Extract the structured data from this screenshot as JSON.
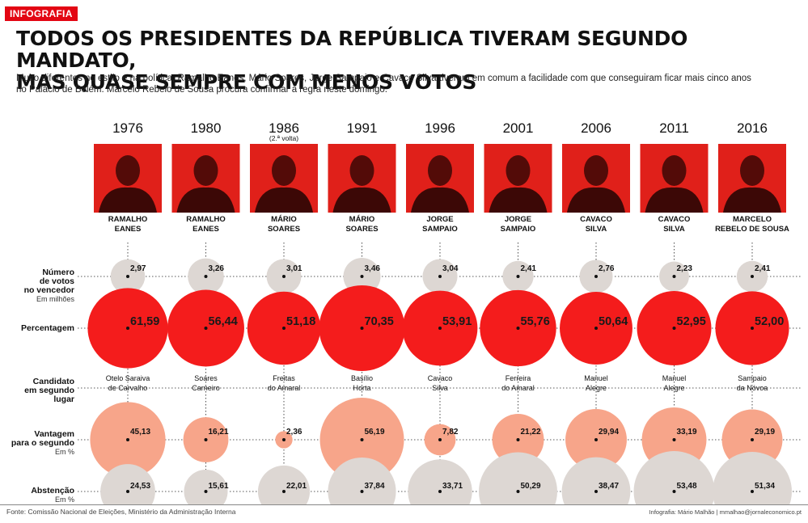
{
  "tag": "INFOGRAFIA",
  "title_line1": "TODOS OS PRESIDENTES DA REPÚBLICA TIVERAM SEGUNDO MANDATO,",
  "title_line2": "MAS QUASE SEMPRE COM MENOS VOTOS",
  "subtitle_line1": "Muito diferentes no estilo e na política, Ramalho Eanes, Mário Soares, Jorge Sampaio e Cavaco Silva tiveram em comum a facilidade com que conseguiram ficar mais cinco anos",
  "subtitle_line2": "no Palácio de Belém. Marcelo Rebelo de Sousa procura confirmar a regra neste domingo.",
  "footer_source": "Fonte: Comissão Nacional de Eleições, Ministério da Administração Interna",
  "footer_credit": "Infografia: Mário Malhão  |  mmalhao@jornaleconomico.pt",
  "colors": {
    "accent": "#e30613",
    "votes_circle": "#ddd7d3",
    "pct_circle": "#f41c1c",
    "adv_circle": "#f7a58a",
    "abst_circle": "#ddd7d3",
    "photo_bg": "#e0201a"
  },
  "row_labels": {
    "votes": [
      "Número",
      "de votos",
      "no vencedor"
    ],
    "votes_unit": "Em milhões",
    "pct": [
      "Percentagem"
    ],
    "second": [
      "Candidato",
      "em segundo",
      "lugar"
    ],
    "adv": [
      "Vantagem",
      "para o segundo"
    ],
    "adv_unit": "Em %",
    "abst": [
      "Abstenção"
    ],
    "abst_unit": "Em %"
  },
  "second_round_note": "(2.ª volta)",
  "chart_data": {
    "type": "table",
    "columns": [
      {
        "year": "1976",
        "winner": [
          "RAMALHO",
          "EANES"
        ],
        "votes": 2.97,
        "votes_label": "2,97",
        "pct": 61.59,
        "pct_label": "61,59",
        "second": [
          "Otelo Saraiva",
          "de Carvalho"
        ],
        "adv": 45.13,
        "adv_label": "45,13",
        "abst": 24.53,
        "abst_label": "24,53"
      },
      {
        "year": "1980",
        "winner": [
          "RAMALHO",
          "EANES"
        ],
        "votes": 3.26,
        "votes_label": "3,26",
        "pct": 56.44,
        "pct_label": "56,44",
        "second": [
          "Soares",
          "Carneiro"
        ],
        "adv": 16.21,
        "adv_label": "16,21",
        "abst": 15.61,
        "abst_label": "15,61"
      },
      {
        "year": "1986",
        "winner": [
          "MÁRIO",
          "SOARES"
        ],
        "votes": 3.01,
        "votes_label": "3,01",
        "pct": 51.18,
        "pct_label": "51,18",
        "second": [
          "Freitas",
          "do Amaral"
        ],
        "adv": 2.36,
        "adv_label": "2,36",
        "abst": 22.01,
        "abst_label": "22,01"
      },
      {
        "year": "1991",
        "winner": [
          "MÁRIO",
          "SOARES"
        ],
        "votes": 3.46,
        "votes_label": "3,46",
        "pct": 70.35,
        "pct_label": "70,35",
        "second": [
          "Basílio",
          "Horta"
        ],
        "adv": 56.19,
        "adv_label": "56,19",
        "abst": 37.84,
        "abst_label": "37,84"
      },
      {
        "year": "1996",
        "winner": [
          "JORGE",
          "SAMPAIO"
        ],
        "votes": 3.04,
        "votes_label": "3,04",
        "pct": 53.91,
        "pct_label": "53,91",
        "second": [
          "Cavaco",
          "Silva"
        ],
        "adv": 7.82,
        "adv_label": "7,82",
        "abst": 33.71,
        "abst_label": "33,71"
      },
      {
        "year": "2001",
        "winner": [
          "JORGE",
          "SAMPAIO"
        ],
        "votes": 2.41,
        "votes_label": "2,41",
        "pct": 55.76,
        "pct_label": "55,76",
        "second": [
          "Ferreira",
          "do Amaral"
        ],
        "adv": 21.22,
        "adv_label": "21,22",
        "abst": 50.29,
        "abst_label": "50,29"
      },
      {
        "year": "2006",
        "winner": [
          "CAVACO",
          "SILVA"
        ],
        "votes": 2.76,
        "votes_label": "2,76",
        "pct": 50.64,
        "pct_label": "50,64",
        "second": [
          "Manuel",
          "Alegre"
        ],
        "adv": 29.94,
        "adv_label": "29,94",
        "abst": 38.47,
        "abst_label": "38,47"
      },
      {
        "year": "2011",
        "winner": [
          "CAVACO",
          "SILVA"
        ],
        "votes": 2.23,
        "votes_label": "2,23",
        "pct": 52.95,
        "pct_label": "52,95",
        "second": [
          "Manuel",
          "Alegre"
        ],
        "adv": 33.19,
        "adv_label": "33,19",
        "abst": 53.48,
        "abst_label": "53,48"
      },
      {
        "year": "2016",
        "winner": [
          "MARCELO",
          "REBELO DE SOUSA"
        ],
        "votes": 2.41,
        "votes_label": "2,41",
        "pct": 52.0,
        "pct_label": "52,00",
        "second": [
          "Sampaio",
          "da Nóvoa"
        ],
        "adv": 29.19,
        "adv_label": "29,19",
        "abst": 51.34,
        "abst_label": "51,34"
      }
    ]
  }
}
